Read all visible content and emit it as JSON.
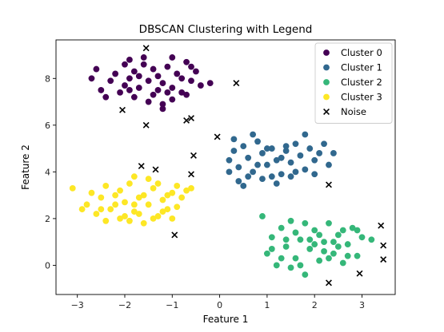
{
  "chart_data": {
    "type": "scatter",
    "title": "DBSCAN Clustering with Legend",
    "xlabel": "Feature 1",
    "ylabel": "Feature 2",
    "xlim": [
      -3.45,
      3.7
    ],
    "ylim": [
      -1.25,
      9.65
    ],
    "xticks": [
      -3,
      -2,
      -1,
      0,
      1,
      2,
      3
    ],
    "yticks": [
      0,
      2,
      4,
      6,
      8
    ],
    "grid": false,
    "legend_position": "top-right",
    "series": [
      {
        "name": "Cluster 0",
        "color": "#440154",
        "marker": "circle",
        "points": [
          [
            -2.6,
            8.4
          ],
          [
            -2.5,
            7.5
          ],
          [
            -2.3,
            7.9
          ],
          [
            -2.2,
            8.2
          ],
          [
            -2.1,
            7.4
          ],
          [
            -2.0,
            7.7
          ],
          [
            -1.9,
            8.0
          ],
          [
            -1.8,
            8.3
          ],
          [
            -1.7,
            7.6
          ],
          [
            -1.6,
            8.6
          ],
          [
            -1.5,
            7.9
          ],
          [
            -1.4,
            7.3
          ],
          [
            -1.3,
            8.1
          ],
          [
            -1.2,
            7.8
          ],
          [
            -1.1,
            8.5
          ],
          [
            -1.0,
            7.6
          ],
          [
            -0.9,
            8.2
          ],
          [
            -0.8,
            7.4
          ],
          [
            -0.7,
            8.7
          ],
          [
            -0.6,
            7.9
          ],
          [
            -0.5,
            8.3
          ],
          [
            -0.4,
            7.7
          ],
          [
            -1.8,
            7.2
          ],
          [
            -1.5,
            7.0
          ],
          [
            -1.2,
            6.9
          ],
          [
            -1.0,
            7.1
          ],
          [
            -1.6,
            8.9
          ],
          [
            -2.4,
            7.2
          ],
          [
            -1.9,
            7.5
          ],
          [
            -1.4,
            8.4
          ],
          [
            -0.8,
            8.0
          ],
          [
            -1.1,
            7.4
          ],
          [
            -0.7,
            7.3
          ],
          [
            -2.0,
            8.6
          ],
          [
            -1.3,
            7.5
          ],
          [
            -0.2,
            7.8
          ],
          [
            -2.7,
            8.0
          ],
          [
            -1.7,
            8.1
          ],
          [
            -1.0,
            8.9
          ],
          [
            -0.6,
            8.5
          ],
          [
            -1.9,
            8.8
          ],
          [
            -1.2,
            6.7
          ]
        ]
      },
      {
        "name": "Cluster 1",
        "color": "#31688e",
        "marker": "circle",
        "points": [
          [
            0.2,
            4.5
          ],
          [
            0.3,
            4.9
          ],
          [
            0.4,
            4.2
          ],
          [
            0.5,
            5.1
          ],
          [
            0.6,
            4.6
          ],
          [
            0.7,
            4.0
          ],
          [
            0.8,
            5.3
          ],
          [
            0.9,
            4.8
          ],
          [
            1.0,
            4.3
          ],
          [
            1.1,
            5.0
          ],
          [
            1.2,
            4.5
          ],
          [
            1.3,
            3.9
          ],
          [
            1.4,
            4.9
          ],
          [
            1.5,
            4.4
          ],
          [
            1.6,
            5.2
          ],
          [
            1.7,
            4.7
          ],
          [
            1.8,
            4.1
          ],
          [
            1.9,
            5.0
          ],
          [
            2.0,
            4.5
          ],
          [
            0.4,
            3.6
          ],
          [
            0.5,
            3.4
          ],
          [
            0.6,
            3.8
          ],
          [
            0.9,
            3.7
          ],
          [
            1.2,
            3.5
          ],
          [
            1.5,
            3.8
          ],
          [
            1.8,
            5.6
          ],
          [
            2.1,
            4.8
          ],
          [
            2.3,
            4.3
          ],
          [
            0.3,
            5.4
          ],
          [
            0.7,
            5.6
          ],
          [
            1.0,
            5.0
          ],
          [
            1.3,
            4.6
          ],
          [
            1.6,
            4.0
          ],
          [
            2.0,
            3.9
          ],
          [
            0.8,
            4.3
          ],
          [
            1.1,
            3.8
          ],
          [
            2.4,
            4.8
          ],
          [
            2.2,
            5.2
          ],
          [
            0.2,
            4.0
          ],
          [
            1.4,
            5.1
          ]
        ]
      },
      {
        "name": "Cluster 2",
        "color": "#35b779",
        "marker": "circle",
        "points": [
          [
            0.9,
            2.1
          ],
          [
            1.0,
            0.5
          ],
          [
            1.1,
            1.2
          ],
          [
            1.2,
            0.0
          ],
          [
            1.3,
            1.6
          ],
          [
            1.4,
            0.8
          ],
          [
            1.5,
            1.9
          ],
          [
            1.6,
            0.3
          ],
          [
            1.7,
            1.1
          ],
          [
            1.8,
            -0.4
          ],
          [
            1.9,
            0.7
          ],
          [
            2.0,
            1.5
          ],
          [
            2.1,
            0.2
          ],
          [
            2.2,
            1.0
          ],
          [
            2.3,
            1.8
          ],
          [
            2.4,
            0.5
          ],
          [
            2.5,
            1.3
          ],
          [
            2.6,
            0.1
          ],
          [
            2.7,
            0.9
          ],
          [
            2.8,
            1.6
          ],
          [
            2.9,
            0.4
          ],
          [
            3.0,
            1.2
          ],
          [
            1.3,
            0.3
          ],
          [
            1.6,
            1.4
          ],
          [
            2.0,
            0.9
          ],
          [
            2.4,
            1.0
          ],
          [
            2.7,
            0.4
          ],
          [
            3.2,
            1.1
          ],
          [
            1.5,
            -0.1
          ],
          [
            2.2,
            0.6
          ],
          [
            1.8,
            1.8
          ],
          [
            1.1,
            0.7
          ],
          [
            2.9,
            1.5
          ],
          [
            2.5,
            0.8
          ],
          [
            1.7,
            0.0
          ],
          [
            2.1,
            1.3
          ],
          [
            1.4,
            1.1
          ],
          [
            2.3,
            0.3
          ],
          [
            1.9,
            1.1
          ],
          [
            2.6,
            1.5
          ]
        ]
      },
      {
        "name": "Cluster 3",
        "color": "#fde725",
        "marker": "circle",
        "points": [
          [
            -3.1,
            3.3
          ],
          [
            -2.8,
            2.6
          ],
          [
            -2.7,
            3.1
          ],
          [
            -2.6,
            2.2
          ],
          [
            -2.5,
            2.9
          ],
          [
            -2.4,
            3.4
          ],
          [
            -2.3,
            2.4
          ],
          [
            -2.2,
            3.0
          ],
          [
            -2.1,
            2.0
          ],
          [
            -2.0,
            2.7
          ],
          [
            -1.9,
            3.5
          ],
          [
            -1.8,
            2.3
          ],
          [
            -1.7,
            2.9
          ],
          [
            -1.6,
            1.8
          ],
          [
            -1.5,
            2.6
          ],
          [
            -1.4,
            3.3
          ],
          [
            -1.3,
            2.1
          ],
          [
            -1.2,
            2.8
          ],
          [
            -1.1,
            2.4
          ],
          [
            -1.0,
            3.1
          ],
          [
            -0.9,
            2.5
          ],
          [
            -0.8,
            2.9
          ],
          [
            -0.7,
            3.2
          ],
          [
            -2.0,
            2.1
          ],
          [
            -1.8,
            3.8
          ],
          [
            -1.6,
            3.0
          ],
          [
            -1.4,
            2.0
          ],
          [
            -1.9,
            1.9
          ],
          [
            -2.2,
            2.6
          ],
          [
            -1.7,
            2.2
          ],
          [
            -1.5,
            3.7
          ],
          [
            -2.5,
            2.4
          ],
          [
            -1.2,
            2.3
          ],
          [
            -2.9,
            2.4
          ],
          [
            -2.4,
            1.9
          ],
          [
            -1.0,
            2.0
          ],
          [
            -0.6,
            3.3
          ],
          [
            -1.3,
            3.5
          ],
          [
            -2.1,
            3.2
          ],
          [
            -1.1,
            3.0
          ],
          [
            -1.8,
            2.6
          ],
          [
            -0.9,
            3.4
          ]
        ]
      },
      {
        "name": "Noise",
        "color": "#000000",
        "marker": "x",
        "points": [
          [
            -1.55,
            9.3
          ],
          [
            0.35,
            7.8
          ],
          [
            -1.55,
            6.0
          ],
          [
            -0.7,
            6.2
          ],
          [
            -0.6,
            6.3
          ],
          [
            -2.05,
            6.65
          ],
          [
            -0.55,
            4.7
          ],
          [
            -0.05,
            5.5
          ],
          [
            -1.65,
            4.25
          ],
          [
            -1.35,
            4.1
          ],
          [
            -0.6,
            3.9
          ],
          [
            -0.95,
            1.3
          ],
          [
            2.3,
            3.45
          ],
          [
            3.4,
            1.7
          ],
          [
            3.45,
            0.85
          ],
          [
            3.45,
            0.25
          ],
          [
            2.95,
            -0.35
          ],
          [
            2.3,
            -0.75
          ]
        ]
      }
    ]
  }
}
